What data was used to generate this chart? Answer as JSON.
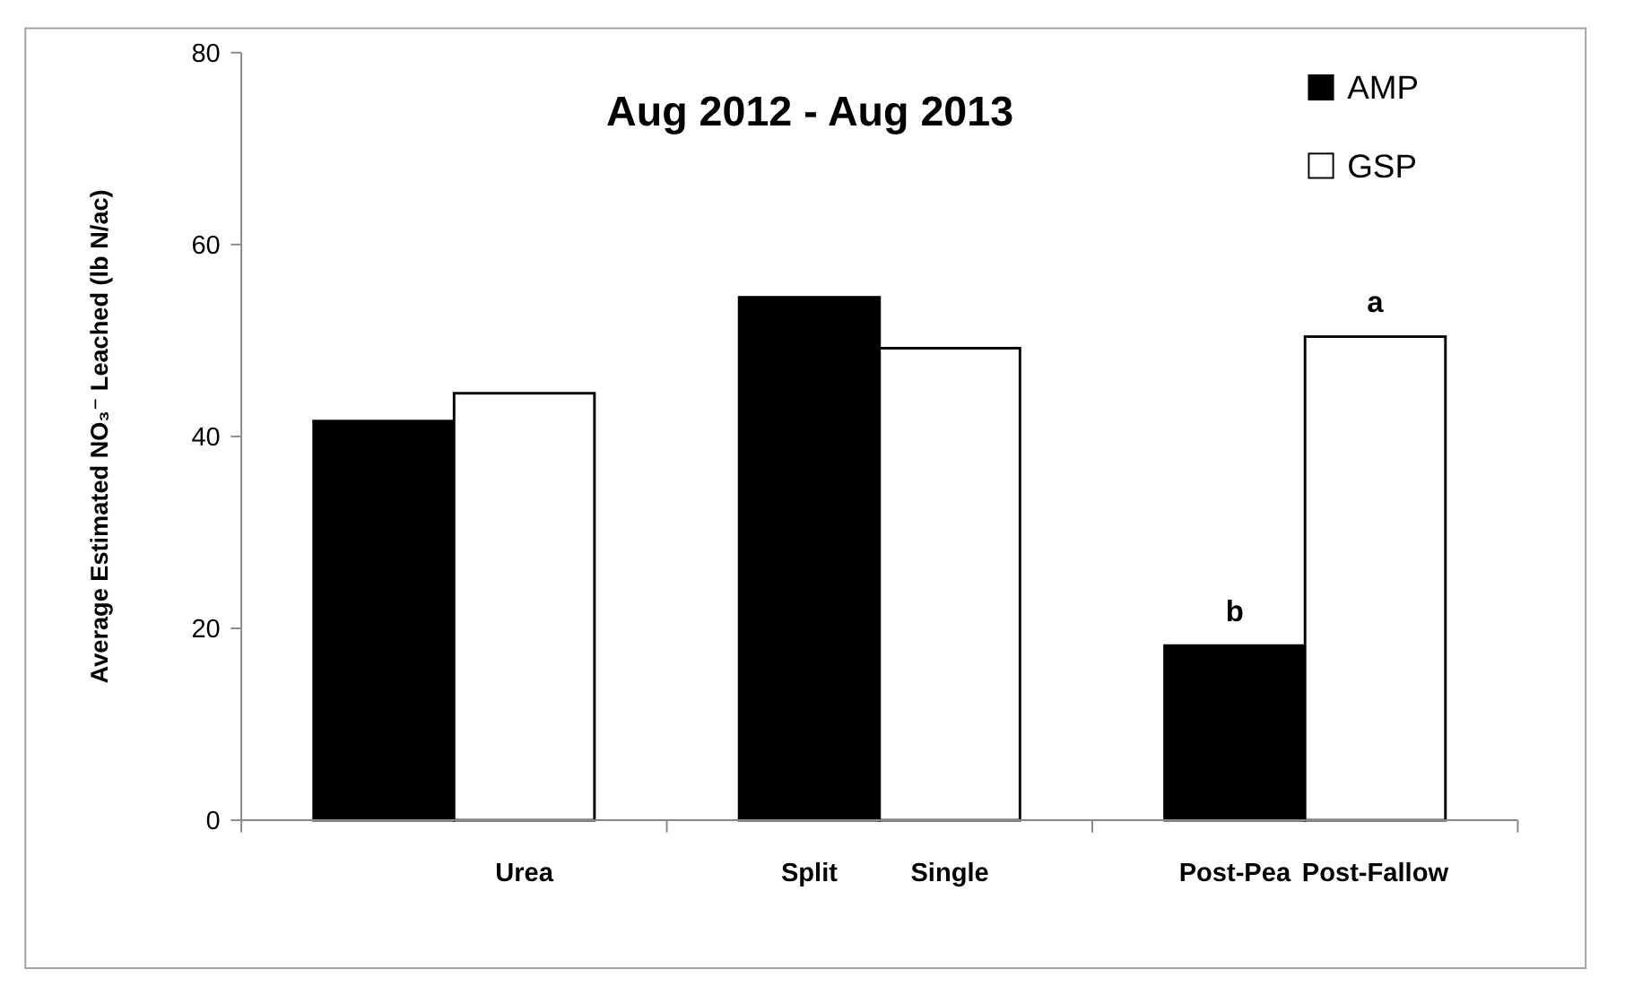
{
  "chart_data": {
    "type": "bar",
    "title": "Aug 2012 - Aug 2013",
    "ylabel": "Average Estimated NO₃⁻ Leached (lb N/ac)",
    "categories": [
      null,
      "Urea",
      "Split",
      "Single",
      "Post-Pea",
      "Post-Fallow"
    ],
    "series": [
      {
        "name": "AMP",
        "color": "#000000",
        "values": [
          41.6,
          null,
          54.5,
          null,
          18.2,
          null
        ]
      },
      {
        "name": "GSP",
        "color": "#ffffff",
        "values": [
          null,
          44.5,
          null,
          49.2,
          null,
          50.4
        ]
      }
    ],
    "ylim": [
      0,
      80
    ],
    "yticks": [
      0,
      20,
      40,
      60,
      80
    ],
    "grid": false,
    "legend": "top right",
    "annotations": [
      {
        "text": "b",
        "x": "Post-Pea",
        "y": 18.2
      },
      {
        "text": "a",
        "x": "Post-Fallow",
        "y": 50.4
      }
    ]
  }
}
